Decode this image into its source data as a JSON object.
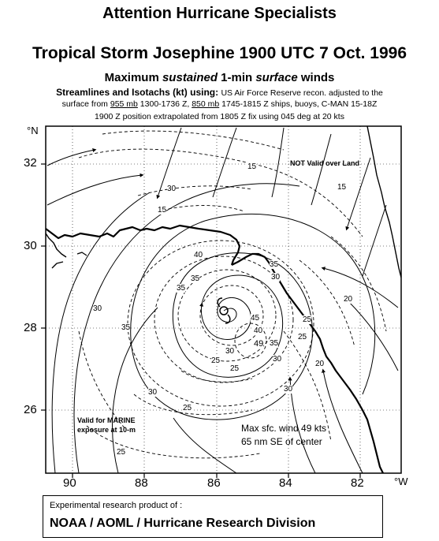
{
  "header": {
    "attention": "Attention  Hurricane Specialists",
    "title": "Tropical Storm Josephine 1900 UTC 7 Oct. 1996",
    "subtitle_a": "Maximum ",
    "subtitle_b": "sustained",
    "subtitle_c": " 1-min ",
    "subtitle_d": "surface",
    "subtitle_e": " winds",
    "streamlines_a": "Streamlines and Isotachs (kt) using: ",
    "streamlines_b": "US Air Force Reserve recon. adjusted to the",
    "line2_a": "surface from ",
    "line2_b": "955 mb",
    "line2_c": " 1300-1736 Z, ",
    "line2_d": "850 mb",
    "line2_e": " 1745-1815 Z  ships, buoys, C-MAN  15-18Z",
    "line3": "1900 Z  position extrapolated from 1805 Z  fix using 045 deg at 20 kts"
  },
  "map": {
    "lat_labels": [
      "32",
      "30",
      "28",
      "26"
    ],
    "lon_labels": [
      "90",
      "88",
      "86",
      "84",
      "82"
    ],
    "north_label": "°N",
    "west_label": "°W",
    "not_valid_land": "NOT Valid over Land",
    "valid_marine_1": "Valid for MARINE",
    "valid_marine_2": "exposure at 10-m",
    "max_wind_1": "Max sfc. wind 49 kts",
    "max_wind_2": "65 nm SE of center",
    "isotach_labels": [
      "15",
      "30",
      "15",
      "35",
      "40",
      "35",
      "30",
      "45",
      "40",
      "49",
      "35",
      "30",
      "35",
      "25",
      "25",
      "30",
      "25",
      "25",
      "25",
      "30",
      "20",
      "15",
      "20",
      "25",
      "30",
      "30",
      "35"
    ],
    "colors": {
      "line": "#000000",
      "background": "#ffffff"
    }
  },
  "footer": {
    "credit_line1": "Experimental research product of :",
    "credit_line2": "NOAA / AOML / Hurricane Research Division"
  }
}
